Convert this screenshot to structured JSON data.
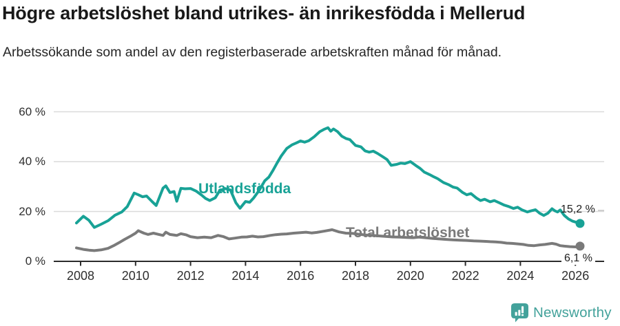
{
  "header": {
    "title": "Högre arbetslöshet bland utrikes- än inrikesfödda i Mellerud",
    "subtitle": "Arbetssökande som andel av den registerbaserade arbetskraften månad för månad."
  },
  "chart_data": {
    "type": "line",
    "title": "Högre arbetslöshet bland utrikes- än inrikesfödda i Mellerud",
    "subtitle": "Arbetssökande som andel av den registerbaserade arbetskraften månad för månad.",
    "grid": "horizontal",
    "legend_position": "inline-labels",
    "x_axis": {
      "range": [
        2007.7,
        2026.4
      ],
      "ticks": [
        {
          "value": 2008,
          "label": "2008"
        },
        {
          "value": 2010,
          "label": "2010"
        },
        {
          "value": 2012,
          "label": "2012"
        },
        {
          "value": 2014,
          "label": "2014"
        },
        {
          "value": 2016,
          "label": "2016"
        },
        {
          "value": 2018,
          "label": "2018"
        },
        {
          "value": 2020,
          "label": "2020"
        },
        {
          "value": 2022,
          "label": "2022"
        },
        {
          "value": 2024,
          "label": "2024"
        },
        {
          "value": 2026,
          "label": "2026"
        }
      ]
    },
    "y_axis": {
      "range": [
        0,
        60
      ],
      "unit": "%",
      "ticks": [
        {
          "value": 0,
          "label": "0 %"
        },
        {
          "value": 20,
          "label": "20 %"
        },
        {
          "value": 40,
          "label": "40 %"
        },
        {
          "value": 60,
          "label": "60 %"
        }
      ]
    },
    "series": [
      {
        "name": "Utlandsfödda",
        "color": "#18a296",
        "end_value": 15.2,
        "end_label": "15,2 %",
        "points": [
          [
            2007.85,
            15.4
          ],
          [
            2008.1,
            18.1
          ],
          [
            2008.3,
            16.5
          ],
          [
            2008.5,
            13.6
          ],
          [
            2008.75,
            14.9
          ],
          [
            2009.0,
            16.3
          ],
          [
            2009.25,
            18.5
          ],
          [
            2009.5,
            19.8
          ],
          [
            2009.7,
            22.0
          ],
          [
            2009.95,
            27.4
          ],
          [
            2010.1,
            26.7
          ],
          [
            2010.25,
            25.9
          ],
          [
            2010.4,
            26.2
          ],
          [
            2010.6,
            24.0
          ],
          [
            2010.75,
            22.4
          ],
          [
            2011.0,
            29.4
          ],
          [
            2011.1,
            30.3
          ],
          [
            2011.25,
            27.6
          ],
          [
            2011.4,
            28.0
          ],
          [
            2011.5,
            24.1
          ],
          [
            2011.65,
            29.3
          ],
          [
            2011.8,
            29.1
          ],
          [
            2012.0,
            29.2
          ],
          [
            2012.2,
            28.2
          ],
          [
            2012.4,
            26.6
          ],
          [
            2012.55,
            25.2
          ],
          [
            2012.7,
            24.4
          ],
          [
            2012.9,
            25.5
          ],
          [
            2013.05,
            28.2
          ],
          [
            2013.25,
            29.2
          ],
          [
            2013.45,
            28.6
          ],
          [
            2013.65,
            23.5
          ],
          [
            2013.8,
            21.3
          ],
          [
            2014.0,
            24.0
          ],
          [
            2014.15,
            23.7
          ],
          [
            2014.3,
            25.5
          ],
          [
            2014.5,
            28.5
          ],
          [
            2014.7,
            32.3
          ],
          [
            2014.85,
            33.8
          ],
          [
            2015.0,
            36.5
          ],
          [
            2015.15,
            39.5
          ],
          [
            2015.3,
            42.3
          ],
          [
            2015.5,
            45.3
          ],
          [
            2015.7,
            46.8
          ],
          [
            2015.85,
            47.5
          ],
          [
            2016.0,
            48.3
          ],
          [
            2016.15,
            47.8
          ],
          [
            2016.3,
            48.4
          ],
          [
            2016.5,
            50.0
          ],
          [
            2016.7,
            52.0
          ],
          [
            2016.85,
            52.9
          ],
          [
            2017.0,
            53.6
          ],
          [
            2017.1,
            52.2
          ],
          [
            2017.2,
            53.1
          ],
          [
            2017.35,
            52.0
          ],
          [
            2017.5,
            50.2
          ],
          [
            2017.65,
            49.3
          ],
          [
            2017.8,
            48.8
          ],
          [
            2018.0,
            46.5
          ],
          [
            2018.2,
            45.9
          ],
          [
            2018.35,
            44.3
          ],
          [
            2018.5,
            43.8
          ],
          [
            2018.65,
            44.2
          ],
          [
            2018.8,
            43.3
          ],
          [
            2019.0,
            41.9
          ],
          [
            2019.15,
            40.8
          ],
          [
            2019.3,
            38.5
          ],
          [
            2019.5,
            38.9
          ],
          [
            2019.65,
            39.4
          ],
          [
            2019.8,
            39.2
          ],
          [
            2020.0,
            40.0
          ],
          [
            2020.2,
            38.4
          ],
          [
            2020.35,
            37.3
          ],
          [
            2020.5,
            35.8
          ],
          [
            2020.7,
            34.8
          ],
          [
            2020.85,
            33.9
          ],
          [
            2021.0,
            33.1
          ],
          [
            2021.2,
            31.6
          ],
          [
            2021.4,
            30.7
          ],
          [
            2021.55,
            29.8
          ],
          [
            2021.7,
            29.4
          ],
          [
            2021.9,
            27.6
          ],
          [
            2022.05,
            26.7
          ],
          [
            2022.2,
            27.2
          ],
          [
            2022.4,
            25.4
          ],
          [
            2022.55,
            24.4
          ],
          [
            2022.7,
            24.9
          ],
          [
            2022.9,
            23.9
          ],
          [
            2023.05,
            24.4
          ],
          [
            2023.25,
            23.4
          ],
          [
            2023.4,
            22.6
          ],
          [
            2023.55,
            22.1
          ],
          [
            2023.75,
            21.2
          ],
          [
            2023.9,
            21.7
          ],
          [
            2024.05,
            20.7
          ],
          [
            2024.25,
            19.8
          ],
          [
            2024.4,
            20.3
          ],
          [
            2024.55,
            20.7
          ],
          [
            2024.7,
            19.3
          ],
          [
            2024.85,
            18.4
          ],
          [
            2025.0,
            19.3
          ],
          [
            2025.15,
            21.1
          ],
          [
            2025.25,
            20.3
          ],
          [
            2025.35,
            19.8
          ],
          [
            2025.45,
            20.6
          ],
          [
            2025.6,
            18.4
          ],
          [
            2025.75,
            17.0
          ],
          [
            2025.9,
            16.1
          ],
          [
            2026.17,
            15.2
          ]
        ]
      },
      {
        "name": "Total arbetslöshet",
        "color": "#7a7a7a",
        "end_value": 6.1,
        "end_label": "6,1 %",
        "points": [
          [
            2007.85,
            5.4
          ],
          [
            2008.1,
            4.8
          ],
          [
            2008.3,
            4.5
          ],
          [
            2008.5,
            4.3
          ],
          [
            2008.75,
            4.6
          ],
          [
            2009.0,
            5.2
          ],
          [
            2009.2,
            6.3
          ],
          [
            2009.4,
            7.5
          ],
          [
            2009.6,
            8.8
          ],
          [
            2009.8,
            10.0
          ],
          [
            2010.0,
            11.3
          ],
          [
            2010.1,
            12.3
          ],
          [
            2010.3,
            11.3
          ],
          [
            2010.45,
            10.8
          ],
          [
            2010.65,
            11.3
          ],
          [
            2010.85,
            10.8
          ],
          [
            2011.0,
            10.4
          ],
          [
            2011.1,
            11.7
          ],
          [
            2011.25,
            10.8
          ],
          [
            2011.5,
            10.4
          ],
          [
            2011.65,
            11.1
          ],
          [
            2011.85,
            10.6
          ],
          [
            2012.0,
            9.9
          ],
          [
            2012.25,
            9.5
          ],
          [
            2012.5,
            9.7
          ],
          [
            2012.75,
            9.5
          ],
          [
            2013.0,
            10.4
          ],
          [
            2013.2,
            9.9
          ],
          [
            2013.4,
            9.0
          ],
          [
            2013.6,
            9.3
          ],
          [
            2013.85,
            9.7
          ],
          [
            2014.05,
            9.8
          ],
          [
            2014.25,
            10.1
          ],
          [
            2014.45,
            9.8
          ],
          [
            2014.65,
            9.9
          ],
          [
            2014.9,
            10.4
          ],
          [
            2015.1,
            10.7
          ],
          [
            2015.3,
            10.9
          ],
          [
            2015.5,
            11.0
          ],
          [
            2015.75,
            11.3
          ],
          [
            2016.0,
            11.5
          ],
          [
            2016.2,
            11.7
          ],
          [
            2016.4,
            11.4
          ],
          [
            2016.6,
            11.6
          ],
          [
            2016.9,
            12.2
          ],
          [
            2017.15,
            12.7
          ],
          [
            2017.4,
            11.8
          ],
          [
            2017.65,
            11.3
          ],
          [
            2017.9,
            11.2
          ],
          [
            2018.1,
            10.9
          ],
          [
            2018.35,
            10.6
          ],
          [
            2018.6,
            10.4
          ],
          [
            2018.85,
            10.2
          ],
          [
            2019.1,
            10.0
          ],
          [
            2019.35,
            9.8
          ],
          [
            2019.6,
            9.7
          ],
          [
            2019.85,
            9.6
          ],
          [
            2020.1,
            9.5
          ],
          [
            2020.3,
            9.7
          ],
          [
            2020.55,
            9.5
          ],
          [
            2020.8,
            9.2
          ],
          [
            2021.05,
            9.0
          ],
          [
            2021.3,
            8.8
          ],
          [
            2021.55,
            8.6
          ],
          [
            2021.8,
            8.5
          ],
          [
            2022.05,
            8.4
          ],
          [
            2022.3,
            8.2
          ],
          [
            2022.55,
            8.1
          ],
          [
            2022.75,
            8.0
          ],
          [
            2022.9,
            7.9
          ],
          [
            2023.1,
            7.8
          ],
          [
            2023.3,
            7.6
          ],
          [
            2023.5,
            7.3
          ],
          [
            2023.7,
            7.2
          ],
          [
            2023.9,
            7.0
          ],
          [
            2024.1,
            6.8
          ],
          [
            2024.3,
            6.4
          ],
          [
            2024.5,
            6.3
          ],
          [
            2024.7,
            6.6
          ],
          [
            2024.9,
            6.8
          ],
          [
            2025.15,
            7.2
          ],
          [
            2025.3,
            6.9
          ],
          [
            2025.45,
            6.3
          ],
          [
            2025.6,
            6.1
          ],
          [
            2025.8,
            5.9
          ],
          [
            2026.0,
            5.8
          ],
          [
            2026.17,
            6.1
          ]
        ]
      }
    ]
  },
  "footer": {
    "brand": "Newsworthy",
    "brand_color": "#43a29b",
    "logo_icon": "speech-bubble-bar-chart-icon"
  }
}
